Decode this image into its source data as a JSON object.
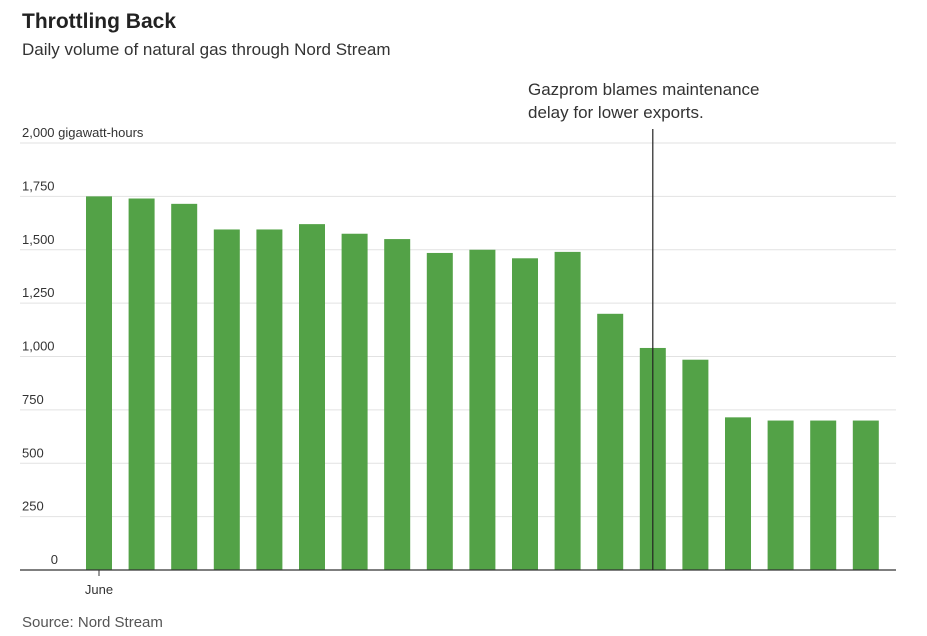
{
  "title": "Throttling Back",
  "subtitle": "Daily volume of natural gas through Nord Stream",
  "source": "Source: Nord Stream",
  "colors": {
    "bar": "#53a247",
    "grid": "#e2e2e2",
    "axis": "#333333",
    "annotation_line": "#222222"
  },
  "chart_data": {
    "type": "bar",
    "title": "Throttling Back",
    "subtitle": "Daily volume of natural gas through Nord Stream",
    "unit_label": "gigawatt-hours",
    "ylim": [
      0,
      2000
    ],
    "yticks": [
      0,
      250,
      500,
      750,
      1000,
      1250,
      1500,
      1750,
      2000
    ],
    "ytick_labels": [
      "0",
      "250",
      "500",
      "750",
      "1,000",
      "1,250",
      "1,500",
      "1,750",
      "2,000"
    ],
    "x_label": "June",
    "values": [
      1750,
      1740,
      1715,
      1595,
      1595,
      1620,
      1575,
      1550,
      1485,
      1500,
      1460,
      1490,
      1200,
      1040,
      985,
      715,
      700,
      700,
      700
    ],
    "annotation": {
      "lines": [
        "Gazprom blames maintenance",
        "delay for lower exports."
      ],
      "bar_index": 13
    },
    "grid": true
  }
}
